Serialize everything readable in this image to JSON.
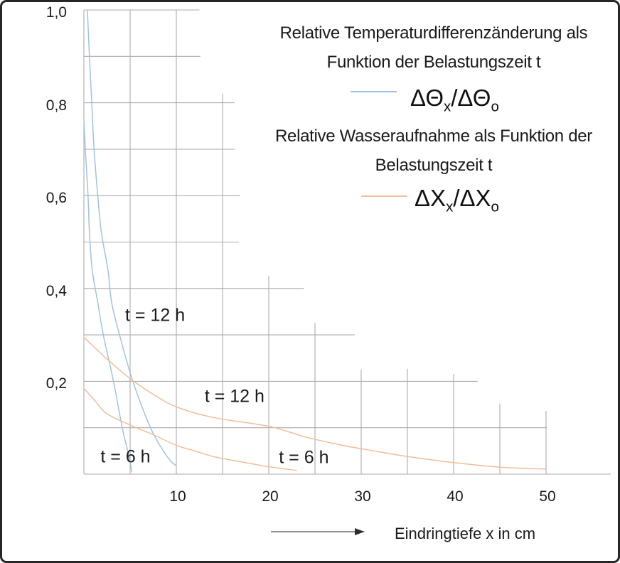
{
  "figure": {
    "title_theta_line1": "Relative Temperaturdifferenzänderung als",
    "title_theta_line2": "Funktion der Belastungszeit t",
    "legend_theta": {
      "d1": "ΔΘ",
      "s1": "x",
      "d2": "/ΔΘ",
      "s2": "o"
    },
    "title_x_line1": "Relative Wasseraufnahme als Funktion der",
    "title_x_line2": "Belastungszeit t",
    "legend_x": {
      "d1": "ΔX",
      "s1": "x",
      "d2": "/ΔX",
      "s2": "o"
    },
    "x_axis_label": "Eindringtiefe x in cm"
  },
  "colors": {
    "grid": "#ababab",
    "text": "#1a1a1a",
    "theta_series": "#9fc2e7",
    "x_series": "#f2bd99",
    "arrow_line": "#4d4d4d",
    "arrow_head": "#2e2e2e",
    "frame_border": "#262626"
  },
  "chart_data": {
    "type": "line",
    "title": "Relative Temperaturdifferenzänderung als Funktion der Belastungszeit t / Relative Wasseraufnahme als Funktion der Belastungszeit t",
    "xlabel": "Eindringtiefe x in cm",
    "ylabel": "",
    "xlim": [
      0,
      57
    ],
    "ylim": [
      0,
      1.0
    ],
    "grid_on": true,
    "legend_position": "right-inline",
    "x_tick_values": [
      10,
      20,
      30,
      40,
      50
    ],
    "x_tick_labels": [
      "10",
      "20",
      "30",
      "40",
      "50"
    ],
    "y_tick_values": [
      1.0,
      0.8,
      0.6,
      0.4,
      0.2
    ],
    "y_tick_labels": [
      "1,0",
      "0,8",
      "0,6",
      "0,4",
      "0,2"
    ],
    "grid": {
      "h_segments": [
        [
          1.0,
          12.5
        ],
        [
          0.9,
          12.6
        ],
        [
          0.8,
          16.3
        ],
        [
          0.7,
          16.3
        ],
        [
          0.6,
          16.9
        ],
        [
          0.5,
          16.8
        ],
        [
          0.4,
          23.8
        ],
        [
          0.3,
          29.3
        ],
        [
          0.2,
          42.6
        ],
        [
          0.1,
          50.1
        ],
        [
          0.0,
          57.0
        ]
      ],
      "v_segments": [
        [
          0,
          1.0
        ],
        [
          5,
          1.0
        ],
        [
          10,
          1.0
        ],
        [
          15,
          0.82
        ],
        [
          20,
          0.427
        ],
        [
          25,
          0.326
        ],
        [
          30,
          0.225
        ],
        [
          35,
          0.227
        ],
        [
          40,
          0.216
        ],
        [
          45,
          0.152
        ],
        [
          50,
          0.136
        ]
      ]
    },
    "series": [
      {
        "id": "theta_12h",
        "quantity": "ΔΘx/ΔΘo",
        "label": "t = 12 h",
        "color": "#9fc2e7",
        "points": [
          [
            0.38,
            1.0
          ],
          [
            0.6,
            0.9
          ],
          [
            0.85,
            0.8
          ],
          [
            1.1,
            0.7
          ],
          [
            1.5,
            0.6
          ],
          [
            1.9,
            0.52
          ],
          [
            2.6,
            0.44
          ],
          [
            3.0,
            0.37
          ],
          [
            3.85,
            0.3
          ],
          [
            5.3,
            0.2
          ],
          [
            7.2,
            0.1
          ],
          [
            8.6,
            0.05
          ],
          [
            9.4,
            0.028
          ],
          [
            10.0,
            0.018
          ]
        ]
      },
      {
        "id": "theta_6h",
        "quantity": "ΔΘx/ΔΘo",
        "label": "t = 6 h",
        "color": "#9fc2e7",
        "points": [
          [
            0,
            0.76
          ],
          [
            0.15,
            0.7
          ],
          [
            0.45,
            0.6
          ],
          [
            0.6,
            0.52
          ],
          [
            0.9,
            0.44
          ],
          [
            1.5,
            0.37
          ],
          [
            2.1,
            0.3
          ],
          [
            3.2,
            0.2
          ],
          [
            4.15,
            0.1
          ],
          [
            4.8,
            0.045
          ],
          [
            5.2,
            0.005
          ]
        ]
      },
      {
        "id": "x_12h",
        "quantity": "ΔXx/ΔXo",
        "label": "t = 12 h",
        "color": "#f2bd99",
        "points": [
          [
            0,
            0.295
          ],
          [
            2.5,
            0.248
          ],
          [
            5,
            0.206
          ],
          [
            7.5,
            0.172
          ],
          [
            10,
            0.145
          ],
          [
            14,
            0.122
          ],
          [
            20,
            0.103
          ],
          [
            24,
            0.08
          ],
          [
            28,
            0.062
          ],
          [
            32,
            0.048
          ],
          [
            35,
            0.038
          ],
          [
            40,
            0.025
          ],
          [
            45,
            0.015
          ],
          [
            50,
            0.011
          ]
        ]
      },
      {
        "id": "x_6h",
        "quantity": "ΔXx/ΔXo",
        "label": "t = 6 h",
        "color": "#f2bd99",
        "points": [
          [
            0,
            0.185
          ],
          [
            1.2,
            0.158
          ],
          [
            2.5,
            0.13
          ],
          [
            5,
            0.106
          ],
          [
            7.5,
            0.085
          ],
          [
            10,
            0.062
          ],
          [
            12,
            0.05
          ],
          [
            14,
            0.038
          ],
          [
            16,
            0.03
          ],
          [
            18,
            0.023
          ],
          [
            20,
            0.016
          ],
          [
            23,
            0.008
          ]
        ]
      }
    ],
    "annotations": [
      {
        "text": "t = 12 h",
        "x": 7.7,
        "y": 0.342,
        "series": "theta_12h"
      },
      {
        "text": "t = 6 h",
        "x": 4.5,
        "y": 0.037,
        "series": "theta_6h"
      },
      {
        "text": "t = 12 h",
        "x": 16.3,
        "y": 0.167,
        "series": "x_12h"
      },
      {
        "text": "t = 6 h",
        "x": 23.8,
        "y": 0.035,
        "series": "x_6h"
      }
    ]
  }
}
